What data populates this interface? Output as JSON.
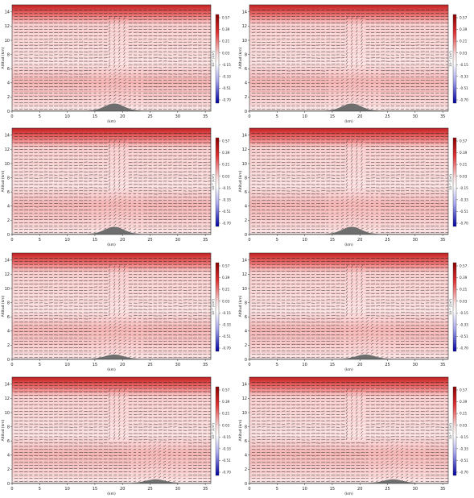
{
  "figure": {
    "panels": 8,
    "layout": "4 rows x 2 columns"
  },
  "chart_data": [
    {
      "type": "heatmap",
      "ylabel": "Altitud (km)",
      "xlabel": "(km)",
      "xlim": [
        0,
        36
      ],
      "ylim": [
        0,
        15
      ],
      "x_ticks": [
        "0",
        "5",
        "10",
        "15",
        "20",
        "25",
        "30",
        "35"
      ],
      "y_ticks": [
        "0",
        "2",
        "4",
        "6",
        "8",
        "10",
        "12",
        "14"
      ],
      "colorbar_label": "10⁻⁵ (1/s²)",
      "colorbar_ticks": [
        "0.57",
        "0.39",
        "0.21",
        "0.03",
        "-0.15",
        "-0.33",
        "-0.51",
        "-0.70"
      ],
      "colormap": [
        "#2a1fb0",
        "#ffffff",
        "#c81e1e"
      ],
      "overlay": "wind vectors",
      "terrain_peak": {
        "x": 18.5,
        "height_km": 1.0
      }
    },
    {
      "type": "heatmap",
      "ylabel": "Altitud (km)",
      "xlabel": "(km)",
      "xlim": [
        0,
        36
      ],
      "ylim": [
        0,
        15
      ],
      "x_ticks": [
        "0",
        "5",
        "10",
        "15",
        "20",
        "25",
        "30",
        "35"
      ],
      "y_ticks": [
        "0",
        "2",
        "4",
        "6",
        "8",
        "10",
        "12",
        "14"
      ],
      "colorbar_label": "10⁻⁵ (1/s²)",
      "colorbar_ticks": [
        "0.57",
        "0.39",
        "0.21",
        "0.03",
        "-0.15",
        "-0.33",
        "-0.51",
        "-0.70"
      ],
      "colormap": [
        "#2a1fb0",
        "#ffffff",
        "#c81e1e"
      ],
      "overlay": "wind vectors",
      "terrain_peak": {
        "x": 18.5,
        "height_km": 1.0
      }
    },
    {
      "type": "heatmap",
      "ylabel": "Altitud (km)",
      "xlabel": "(km)",
      "xlim": [
        0,
        36
      ],
      "ylim": [
        0,
        15
      ],
      "x_ticks": [
        "0",
        "5",
        "10",
        "15",
        "20",
        "25",
        "30",
        "35"
      ],
      "y_ticks": [
        "0",
        "2",
        "4",
        "6",
        "8",
        "10",
        "12",
        "14"
      ],
      "colorbar_label": "10⁻⁵ (1/s²)",
      "colorbar_ticks": [
        "0.57",
        "0.39",
        "0.21",
        "0.03",
        "-0.15",
        "-0.33",
        "-0.51",
        "-0.70"
      ],
      "colormap": [
        "#2a1fb0",
        "#ffffff",
        "#c81e1e"
      ],
      "overlay": "wind vectors",
      "terrain_peak": {
        "x": 18.5,
        "height_km": 1.0
      }
    },
    {
      "type": "heatmap",
      "ylabel": "Altitud (km)",
      "xlabel": "(km)",
      "xlim": [
        0,
        36
      ],
      "ylim": [
        0,
        15
      ],
      "x_ticks": [
        "0",
        "5",
        "10",
        "15",
        "20",
        "25",
        "30",
        "35"
      ],
      "y_ticks": [
        "0",
        "2",
        "4",
        "6",
        "8",
        "10",
        "12",
        "14"
      ],
      "colorbar_label": "10⁻⁵ (1/s²)",
      "colorbar_ticks": [
        "0.57",
        "0.39",
        "0.21",
        "0.03",
        "-0.15",
        "-0.33",
        "-0.51",
        "-0.70"
      ],
      "colormap": [
        "#2a1fb0",
        "#ffffff",
        "#c81e1e"
      ],
      "overlay": "wind vectors",
      "terrain_peak": {
        "x": 18.5,
        "height_km": 1.0
      }
    },
    {
      "type": "heatmap",
      "ylabel": "Altitud (km)",
      "xlabel": "(km)",
      "xlim": [
        0,
        36
      ],
      "ylim": [
        0,
        15
      ],
      "x_ticks": [
        "0",
        "5",
        "10",
        "15",
        "20",
        "25",
        "30",
        "35"
      ],
      "y_ticks": [
        "0",
        "2",
        "4",
        "6",
        "8",
        "10",
        "12",
        "14"
      ],
      "colorbar_label": "10⁻⁵ (1/s²)",
      "colorbar_ticks": [
        "0.57",
        "0.39",
        "0.21",
        "0.03",
        "-0.15",
        "-0.33",
        "-0.51",
        "-0.70"
      ],
      "colormap": [
        "#2a1fb0",
        "#ffffff",
        "#c81e1e"
      ],
      "overlay": "wind vectors",
      "terrain_peak": {
        "x": 18.5,
        "height_km": 0.6
      }
    },
    {
      "type": "heatmap",
      "ylabel": "Altitud (km)",
      "xlabel": "(km)",
      "xlim": [
        0,
        36
      ],
      "ylim": [
        0,
        15
      ],
      "x_ticks": [
        "0",
        "5",
        "10",
        "15",
        "20",
        "25",
        "30",
        "35"
      ],
      "y_ticks": [
        "0",
        "2",
        "4",
        "6",
        "8",
        "10",
        "12",
        "14"
      ],
      "colorbar_label": "10⁻⁵ (1/s²)",
      "colorbar_ticks": [
        "0.57",
        "0.39",
        "0.21",
        "0.03",
        "-0.15",
        "-0.33",
        "-0.51",
        "-0.70"
      ],
      "colormap": [
        "#2a1fb0",
        "#ffffff",
        "#c81e1e"
      ],
      "overlay": "wind vectors",
      "terrain_peak": {
        "x": 21.0,
        "height_km": 0.6
      }
    },
    {
      "type": "heatmap",
      "ylabel": "Altitud (km)",
      "xlabel": "(km)",
      "xlim": [
        0,
        36
      ],
      "ylim": [
        0,
        15
      ],
      "x_ticks": [
        "0",
        "5",
        "10",
        "15",
        "20",
        "25",
        "30",
        "35"
      ],
      "y_ticks": [
        "0",
        "2",
        "4",
        "6",
        "8",
        "10",
        "12",
        "14"
      ],
      "colorbar_label": "10⁻⁵ (1/s²)",
      "colorbar_ticks": [
        "0.57",
        "0.39",
        "0.21",
        "0.03",
        "-0.15",
        "-0.33",
        "-0.51",
        "-0.70"
      ],
      "colormap": [
        "#2a1fb0",
        "#ffffff",
        "#c81e1e"
      ],
      "overlay": "wind vectors",
      "terrain_peak": {
        "x": 26.0,
        "height_km": 0.5
      }
    },
    {
      "type": "heatmap",
      "ylabel": "Altitud (km)",
      "xlabel": "(km)",
      "xlim": [
        0,
        36
      ],
      "ylim": [
        0,
        15
      ],
      "x_ticks": [
        "0",
        "5",
        "10",
        "15",
        "20",
        "25",
        "30",
        "35"
      ],
      "y_ticks": [
        "0",
        "2",
        "4",
        "6",
        "8",
        "10",
        "12",
        "14"
      ],
      "colorbar_label": "10⁻⁵ (1/s²)",
      "colorbar_ticks": [
        "0.57",
        "0.39",
        "0.21",
        "0.03",
        "-0.15",
        "-0.33",
        "-0.51",
        "-0.70"
      ],
      "colormap": [
        "#2a1fb0",
        "#ffffff",
        "#c81e1e"
      ],
      "overlay": "wind vectors",
      "terrain_peak": {
        "x": 26.0,
        "height_km": 0.5
      }
    }
  ]
}
